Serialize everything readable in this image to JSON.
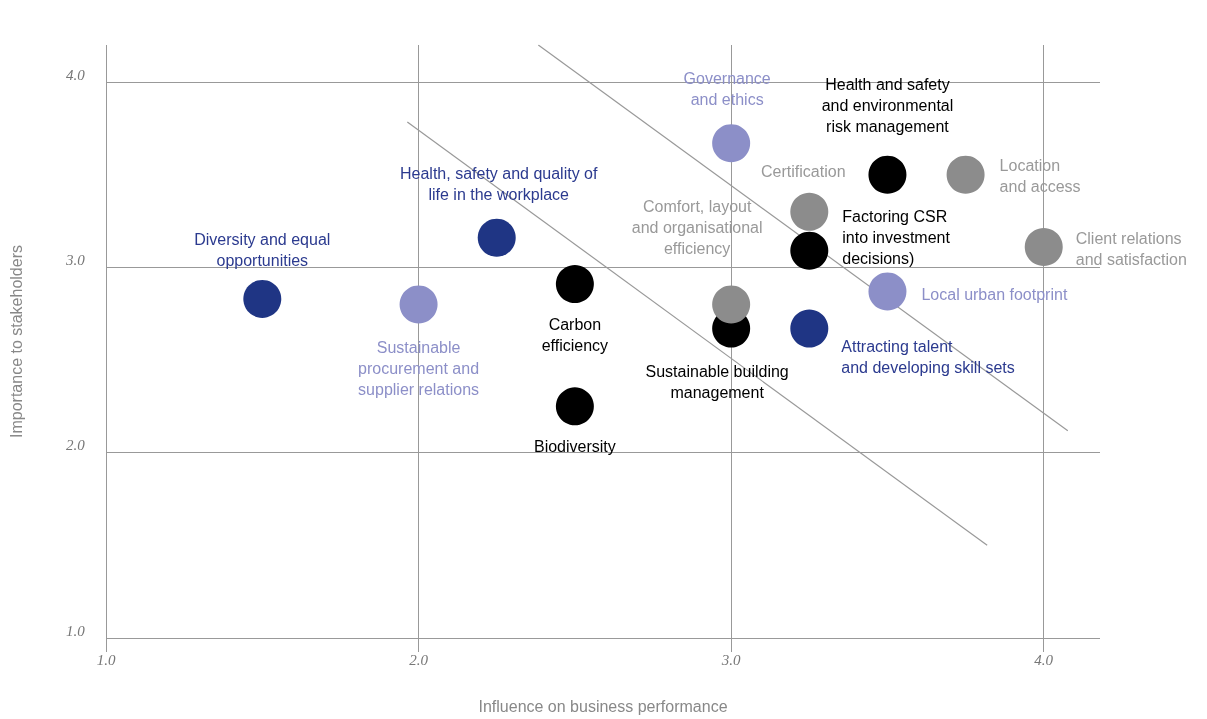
{
  "chart_data": {
    "type": "scatter",
    "xlabel": "Influence on business performance",
    "ylabel": "Importance to stakeholders",
    "xlim": [
      1,
      4.18
    ],
    "ylim": [
      1,
      4.2
    ],
    "xticks": [
      {
        "value": 1,
        "label": "1.0"
      },
      {
        "value": 2,
        "label": "2.0"
      },
      {
        "value": 3,
        "label": "3.0"
      },
      {
        "value": 4,
        "label": "4.0"
      }
    ],
    "yticks": [
      {
        "value": 1,
        "label": "1.0"
      },
      {
        "value": 2,
        "label": "2.0"
      },
      {
        "value": 3,
        "label": "3.0"
      },
      {
        "value": 4,
        "label": "4.0"
      }
    ],
    "grid": true,
    "series": [
      {
        "marker": "circle",
        "color": "#1f3584",
        "x": [
          1.5,
          2.25,
          3.25
        ],
        "values": [
          2.83,
          3.16,
          2.67
        ]
      },
      {
        "marker": "circle",
        "color": "#8c8fc8",
        "x": [
          2.0,
          3.0,
          3.5
        ],
        "values": [
          2.8,
          3.67,
          2.87
        ]
      },
      {
        "marker": "circle",
        "color": "#000000",
        "x": [
          2.5,
          2.5,
          3.0,
          3.25,
          3.5
        ],
        "values": [
          2.91,
          2.25,
          2.67,
          3.09,
          3.5
        ]
      },
      {
        "marker": "circle",
        "color": "#8c8c8c",
        "x": [
          3.0,
          3.25,
          3.75,
          4.0
        ],
        "values": [
          2.8,
          3.3,
          3.5,
          3.11
        ]
      },
      {
        "type": "line",
        "color": "#999999",
        "x": [
          2.383,
          4.077
        ],
        "values": [
          4.2,
          2.118
        ]
      },
      {
        "type": "line",
        "color": "#999999",
        "x": [
          1.964,
          3.819
        ],
        "values": [
          3.785,
          1.5
        ]
      }
    ],
    "annotations": [
      {
        "text": "Diversity and equal\nopportunities",
        "x": 1.5,
        "y": 2.83
      },
      {
        "text": "Sustainable\nprocurement and\nsupplier relations",
        "x": 2.0,
        "y": 2.8
      },
      {
        "text": "Health, safety and quality of\nlife in the workplace",
        "x": 2.25,
        "y": 3.16
      },
      {
        "text": "Carbon\nefficiency",
        "x": 2.5,
        "y": 2.91
      },
      {
        "text": "Biodiversity",
        "x": 2.5,
        "y": 2.25
      },
      {
        "text": "Governance\nand ethics",
        "x": 3.0,
        "y": 3.67
      },
      {
        "text": "Comfort, layout\nand organisational\nefficiency",
        "x": 3.0,
        "y": 2.8
      },
      {
        "text": "Sustainable building\nmanagement",
        "x": 3.0,
        "y": 2.67
      },
      {
        "text": "Certification",
        "x": 3.25,
        "y": 3.3
      },
      {
        "text": "Factoring CSR\ninto investment\ndecisions)",
        "x": 3.25,
        "y": 3.09
      },
      {
        "text": "Attracting talent\nand developing skill sets",
        "x": 3.25,
        "y": 2.67
      },
      {
        "text": "Health and safety\nand environmental\nrisk management",
        "x": 3.5,
        "y": 3.5
      },
      {
        "text": "Local urban footprint",
        "x": 3.5,
        "y": 2.87
      },
      {
        "text": "Location\nand access",
        "x": 3.75,
        "y": 3.5
      },
      {
        "text": "Client relations\nand satisfaction",
        "x": 4.0,
        "y": 3.11
      }
    ]
  }
}
